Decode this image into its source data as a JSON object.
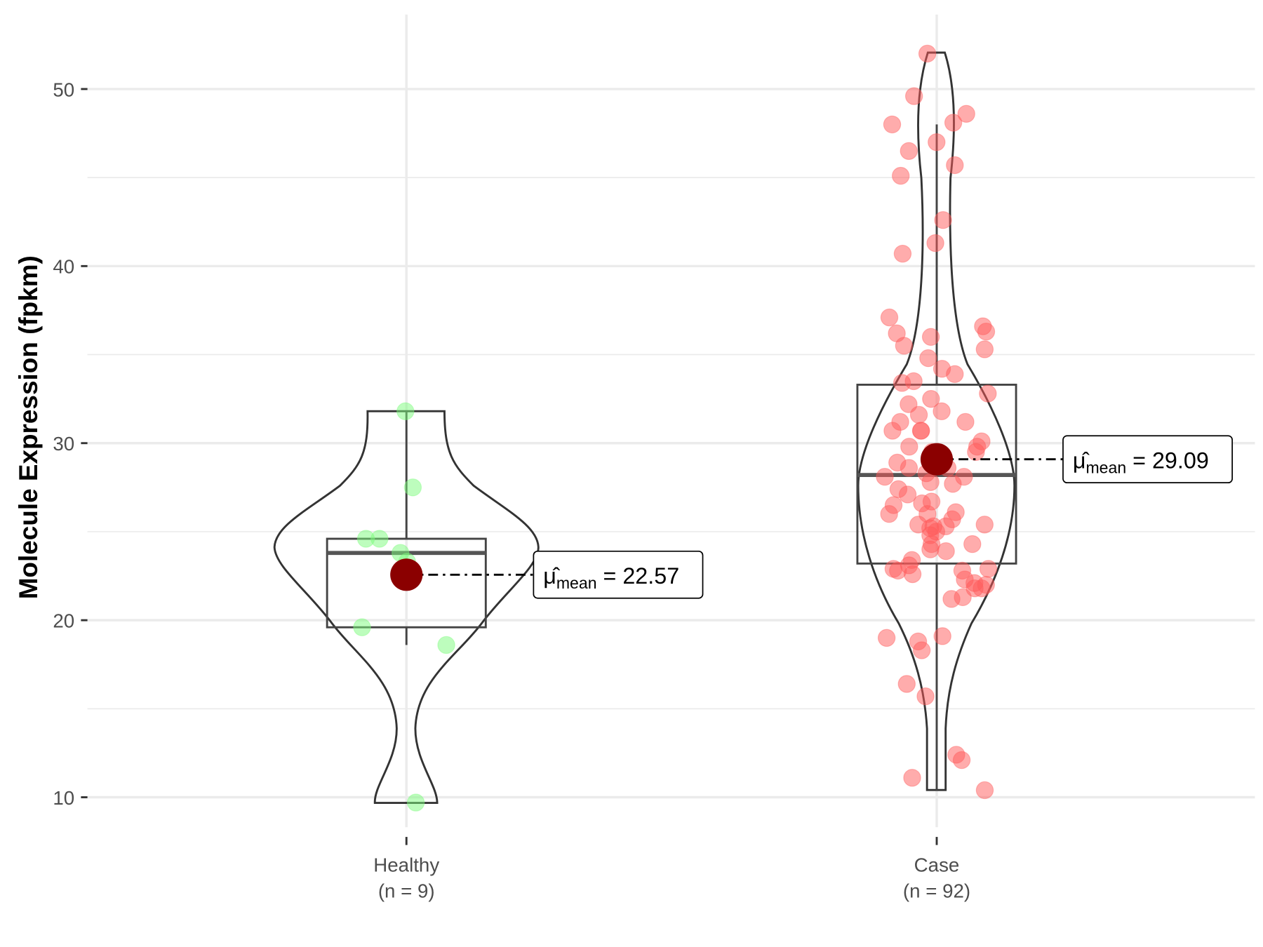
{
  "chart_data": {
    "type": "violin-box-scatter",
    "ylabel": "Molecule Expression (fpkm)",
    "xlabel": "",
    "ylim": [
      7.5,
      54
    ],
    "y_ticks": [
      10,
      20,
      30,
      40,
      50
    ],
    "y_tick_labels": [
      "10",
      "20",
      "30",
      "40",
      "50"
    ],
    "grid": true,
    "categories": [
      "Healthy",
      "Case"
    ],
    "category_counts": [
      "(n = 9)",
      "(n = 92)"
    ],
    "groups": [
      {
        "name": "Healthy",
        "n_label": "(n = 9)",
        "color": "#7cfc7c",
        "mean": 22.57,
        "mean_label": "22.57",
        "box": {
          "whisker_low": 18.6,
          "q1": 19.6,
          "median": 23.8,
          "q3": 24.6,
          "whisker_high": 31.8
        },
        "points": [
          31.8,
          27.5,
          24.6,
          24.6,
          23.8,
          23.3,
          19.6,
          18.6,
          9.7
        ]
      },
      {
        "name": "Case",
        "n_label": "(n = 92)",
        "color": "#ff5a5a",
        "mean": 29.09,
        "mean_label": "29.09",
        "box": {
          "whisker_low": 10.4,
          "q1": 23.2,
          "median": 28.2,
          "q3": 33.3,
          "whisker_high": 48.0
        },
        "points": [
          52.0,
          49.6,
          48.6,
          48.1,
          48.0,
          47.0,
          46.5,
          45.7,
          45.1,
          42.6,
          41.3,
          40.7,
          37.1,
          36.6,
          36.3,
          36.2,
          36.0,
          35.3,
          35.5,
          34.8,
          34.2,
          33.9,
          33.5,
          33.4,
          32.8,
          32.5,
          32.2,
          31.8,
          31.6,
          31.2,
          31.2,
          30.7,
          30.7,
          30.7,
          30.1,
          29.8,
          29.8,
          29.4,
          28.6,
          28.6,
          28.3,
          28.1,
          27.7,
          27.4,
          27.1,
          26.7,
          26.5,
          26.0,
          26.0,
          26.1,
          25.7,
          25.4,
          25.4,
          25.2,
          25.0,
          24.8,
          24.3,
          24.3,
          24.0,
          23.4,
          23.1,
          22.8,
          22.8,
          22.6,
          22.3,
          22.1,
          22.0,
          21.8,
          21.8,
          21.3,
          21.2,
          19.1,
          19.0,
          18.8,
          18.3,
          16.4,
          15.7,
          12.4,
          12.1,
          11.1,
          10.4,
          28.1,
          26.6,
          25.3,
          27.8,
          22.9,
          22.9,
          29.5,
          29.5,
          23.9,
          25.3,
          28.9
        ]
      }
    ],
    "mean_symbol": "μ̂",
    "mean_subscript": "mean",
    "mean_color": "#8b0000"
  }
}
